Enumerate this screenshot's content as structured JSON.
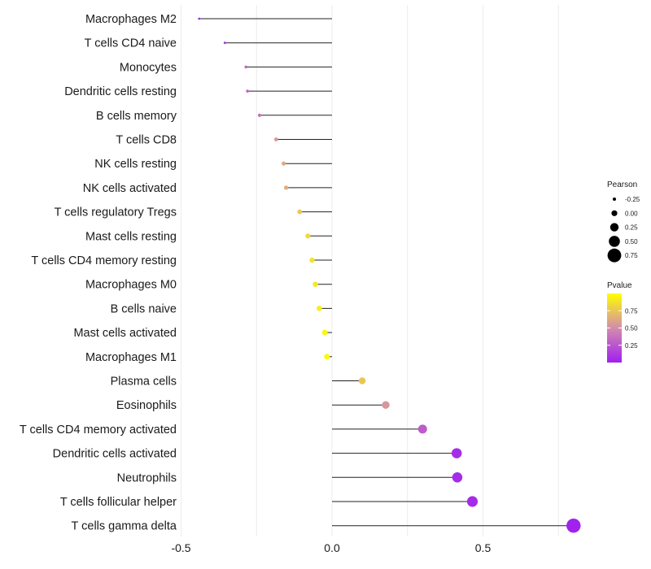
{
  "chart_data": {
    "type": "lollipop",
    "x_ticks": [
      -0.5,
      0.0,
      0.5
    ],
    "x_tick_labels": [
      "-0.5",
      "0.0",
      "0.5"
    ],
    "xlim": [
      -0.5,
      0.8
    ],
    "baseline": 0.0,
    "grid": true,
    "legend_position": "right",
    "categories": [
      "Macrophages M2",
      "T cells CD4 naive",
      "Monocytes",
      "Dendritic cells resting",
      "B cells memory",
      "T cells CD8",
      "NK cells resting",
      "NK cells activated",
      "T cells regulatory  Tregs",
      "Mast cells resting",
      "T cells CD4 memory resting",
      "Macrophages M0",
      "B cells naive",
      "Mast cells activated",
      "Macrophages M1",
      "Plasma cells",
      "Eosinophils",
      "T cells CD4 memory activated",
      "Dendritic cells activated",
      "Neutrophils",
      "T cells follicular helper",
      "T cells gamma delta"
    ],
    "pearson": [
      -0.44,
      -0.355,
      -0.285,
      -0.28,
      -0.24,
      -0.185,
      -0.16,
      -0.152,
      -0.107,
      -0.08,
      -0.066,
      -0.055,
      -0.042,
      -0.024,
      -0.017,
      0.1,
      0.178,
      0.3,
      0.413,
      0.415,
      0.465,
      0.8
    ],
    "pvalue": [
      0.04,
      0.08,
      0.3,
      0.32,
      0.36,
      0.55,
      0.62,
      0.64,
      0.76,
      0.84,
      0.88,
      0.9,
      0.92,
      0.97,
      0.98,
      0.75,
      0.55,
      0.28,
      0.06,
      0.06,
      0.05,
      0.01
    ],
    "size_legend": {
      "title": "Pearson",
      "values": [
        -0.25,
        0.0,
        0.25,
        0.5,
        0.75
      ],
      "labels": [
        "-0.25",
        "0.00",
        "0.25",
        "0.50",
        "0.75"
      ]
    },
    "color_legend": {
      "title": "Pvalue",
      "range": [
        0.0,
        1.0
      ],
      "breaks": [
        0.75,
        0.5,
        0.25
      ],
      "labels": [
        "0.75",
        "0.50",
        "0.25"
      ],
      "low_color": "#a020f0",
      "mid_color": "#d38cac",
      "high_color": "#ffff00"
    }
  }
}
